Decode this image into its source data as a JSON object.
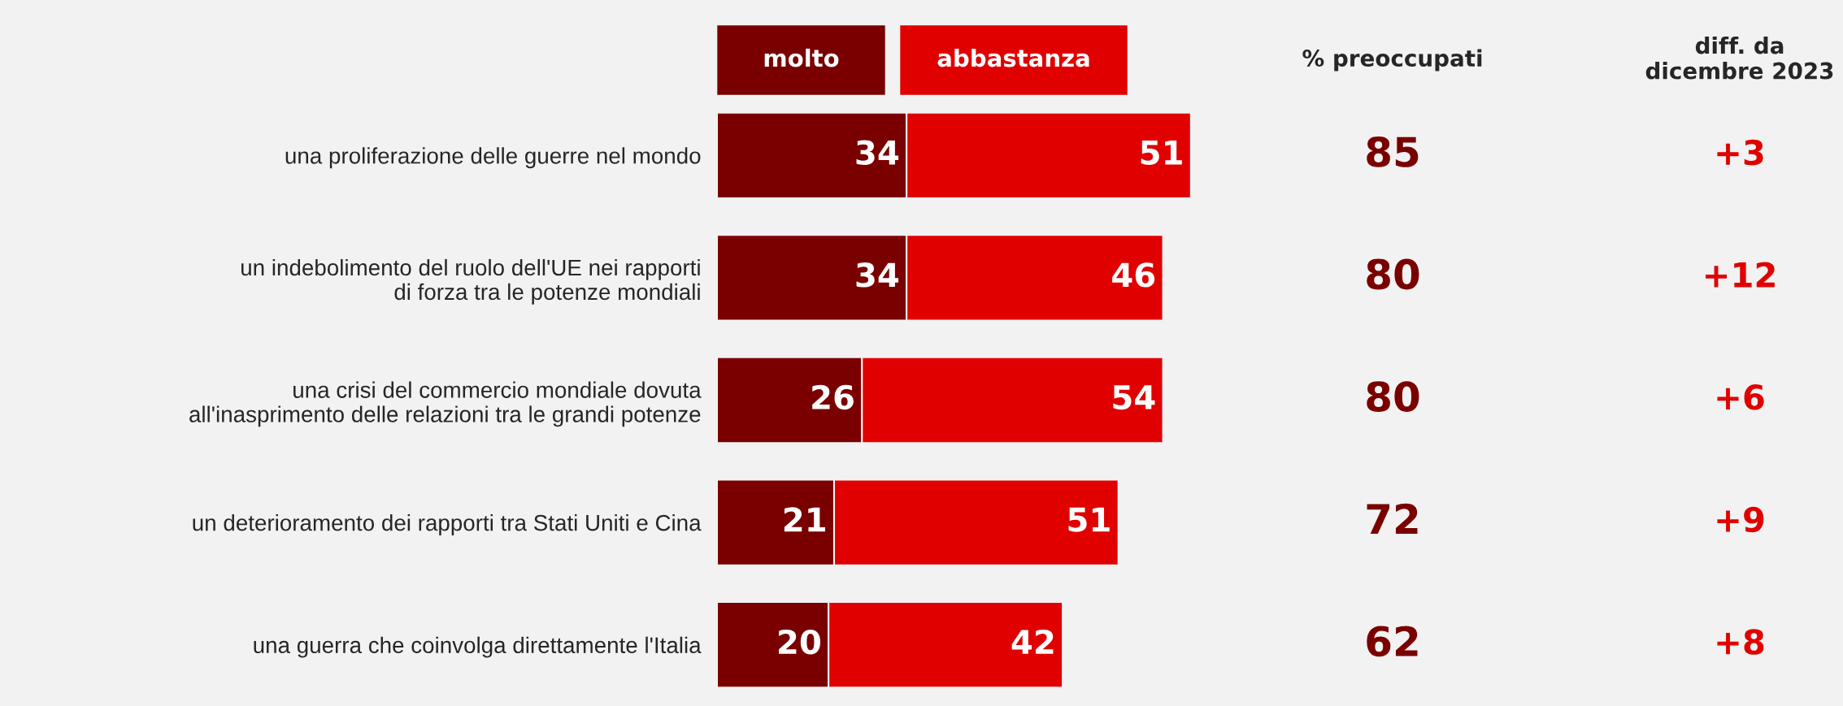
{
  "chart_data": {
    "type": "bar",
    "orientation": "horizontal",
    "stacked": true,
    "data_labels": true,
    "legend": "top",
    "grid": false,
    "tick_labels": "y",
    "categories": [
      "una proliferazione delle guerre nel mondo",
      "un indebolimento del ruolo dell'UE nei rapporti\ndi forza tra le potenze mondiali",
      "una crisi del commercio mondiale dovuta\nall'inasprimento delle relazioni tra le grandi potenze",
      "un deterioramento dei rapporti tra Stati Uniti e Cina",
      "una guerra che coinvolga direttamente l'Italia"
    ],
    "series": [
      {
        "name": "molto",
        "color": "#7a0000",
        "values": [
          34,
          34,
          26,
          21,
          20
        ]
      },
      {
        "name": "abbastanza",
        "color": "#e00000",
        "values": [
          51,
          46,
          54,
          51,
          42
        ]
      }
    ],
    "annotations": [
      "% preoccupati",
      "diff. da\ndicembre 2023",
      "85",
      "80",
      "80",
      "72",
      "62",
      "+3",
      "+12",
      "+6",
      "+9",
      "+8"
    ]
  }
}
